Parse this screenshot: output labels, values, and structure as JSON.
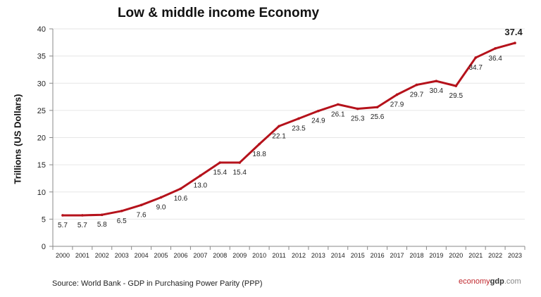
{
  "chart_data": {
    "type": "line",
    "title": "Low & middle income Economy",
    "xlabel": "",
    "ylabel": "Trillions (US Dollars)",
    "ylim": [
      0,
      40
    ],
    "yticks": [
      0,
      5,
      10,
      15,
      20,
      25,
      30,
      35,
      40
    ],
    "grid": true,
    "categories": [
      "2000",
      "2001",
      "2002",
      "2003",
      "2004",
      "2005",
      "2006",
      "2007",
      "2008",
      "2009",
      "2010",
      "2011",
      "2012",
      "2013",
      "2014",
      "2015",
      "2016",
      "2017",
      "2018",
      "2019",
      "2020",
      "2021",
      "2022",
      "2023"
    ],
    "values": [
      5.7,
      5.7,
      5.8,
      6.5,
      7.6,
      9.0,
      10.6,
      13.0,
      15.4,
      15.4,
      18.8,
      22.1,
      23.5,
      24.9,
      26.1,
      25.3,
      25.6,
      27.9,
      29.7,
      30.4,
      29.5,
      34.7,
      36.4,
      37.4
    ],
    "data_labels": [
      "5.7",
      "5.7",
      "5.8",
      "6.5",
      "7.6",
      "9.0",
      "10.6",
      "13.0",
      "15.4",
      "15.4",
      "18.8",
      "22.1",
      "23.5",
      "24.9",
      "26.1",
      "25.3",
      "25.6",
      "27.9",
      "29.7",
      "30.4",
      "29.5",
      "34.7",
      "36.4",
      "37.4"
    ],
    "line_color": "#b5121b"
  },
  "footer": {
    "source": "Source:  World Bank -  GDP  in Purchasing Power Parity (PPP)",
    "logo_part1": "economy",
    "logo_part2": "gdp",
    "logo_part3": ".com"
  }
}
